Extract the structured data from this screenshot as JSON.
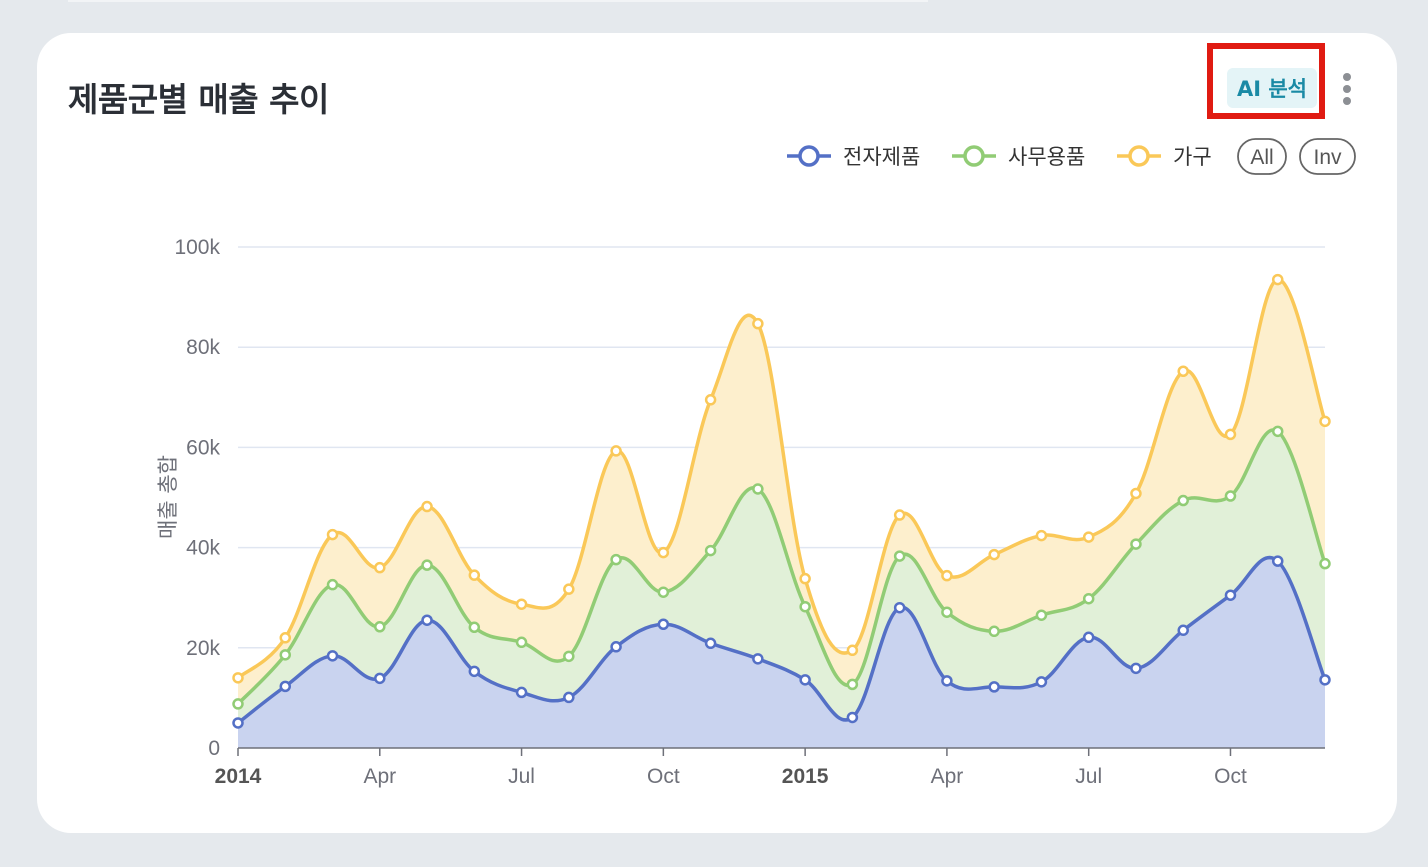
{
  "card": {
    "title": "제품군별 매출 추이",
    "ai_button_label": "AI 분석",
    "menu_icon": "kebab-vertical-icon"
  },
  "legend": {
    "items": [
      "전자제품",
      "사무용품",
      "가구"
    ],
    "all_label": "All",
    "inv_label": "Inv"
  },
  "chart_data": {
    "type": "area",
    "stacked": true,
    "ylabel": "매출 총합",
    "ylim": [
      0,
      100000
    ],
    "yticks": [
      "0",
      "20k",
      "40k",
      "60k",
      "80k",
      "100k"
    ],
    "xtick_labels": [
      {
        "label": "2014",
        "bold": true,
        "month": 0
      },
      {
        "label": "Apr",
        "bold": false,
        "month": 3
      },
      {
        "label": "Jul",
        "bold": false,
        "month": 6
      },
      {
        "label": "Oct",
        "bold": false,
        "month": 9
      },
      {
        "label": "2015",
        "bold": true,
        "month": 12
      },
      {
        "label": "Apr",
        "bold": false,
        "month": 15
      },
      {
        "label": "Jul",
        "bold": false,
        "month": 18
      },
      {
        "label": "Oct",
        "bold": false,
        "month": 21
      }
    ],
    "x": [
      "2014-01",
      "2014-02",
      "2014-03",
      "2014-04",
      "2014-05",
      "2014-06",
      "2014-07",
      "2014-08",
      "2014-09",
      "2014-10",
      "2014-11",
      "2014-12",
      "2015-01",
      "2015-02",
      "2015-03",
      "2015-04",
      "2015-05",
      "2015-06",
      "2015-07",
      "2015-08",
      "2015-09",
      "2015-10",
      "2015-11",
      "2015-12"
    ],
    "series": [
      {
        "name": "전자제품",
        "color": "#5470c6",
        "fill": "#c9d3ef",
        "values": [
          5000,
          12300,
          18400,
          13900,
          25500,
          15300,
          11100,
          10100,
          20200,
          24700,
          20900,
          17800,
          13600,
          6100,
          28000,
          13400,
          12200,
          13200,
          22100,
          15900,
          23500,
          30500,
          37300,
          13600
        ]
      },
      {
        "name": "사무용품",
        "color": "#91cc75",
        "fill": "#e1f0d8",
        "values": [
          3800,
          6300,
          14200,
          10300,
          11000,
          8800,
          10000,
          8200,
          17400,
          6400,
          18500,
          33900,
          14600,
          6600,
          10300,
          13700,
          11100,
          13300,
          7700,
          24800,
          25900,
          19800,
          25900,
          23200
        ]
      },
      {
        "name": "가구",
        "color": "#fac858",
        "fill": "#fdefcd",
        "values": [
          5200,
          3400,
          10000,
          11800,
          11700,
          10400,
          7600,
          13400,
          21700,
          7900,
          30100,
          33000,
          5600,
          6800,
          8200,
          7300,
          15300,
          15900,
          12300,
          10100,
          25800,
          12300,
          30300,
          28400
        ]
      }
    ]
  }
}
